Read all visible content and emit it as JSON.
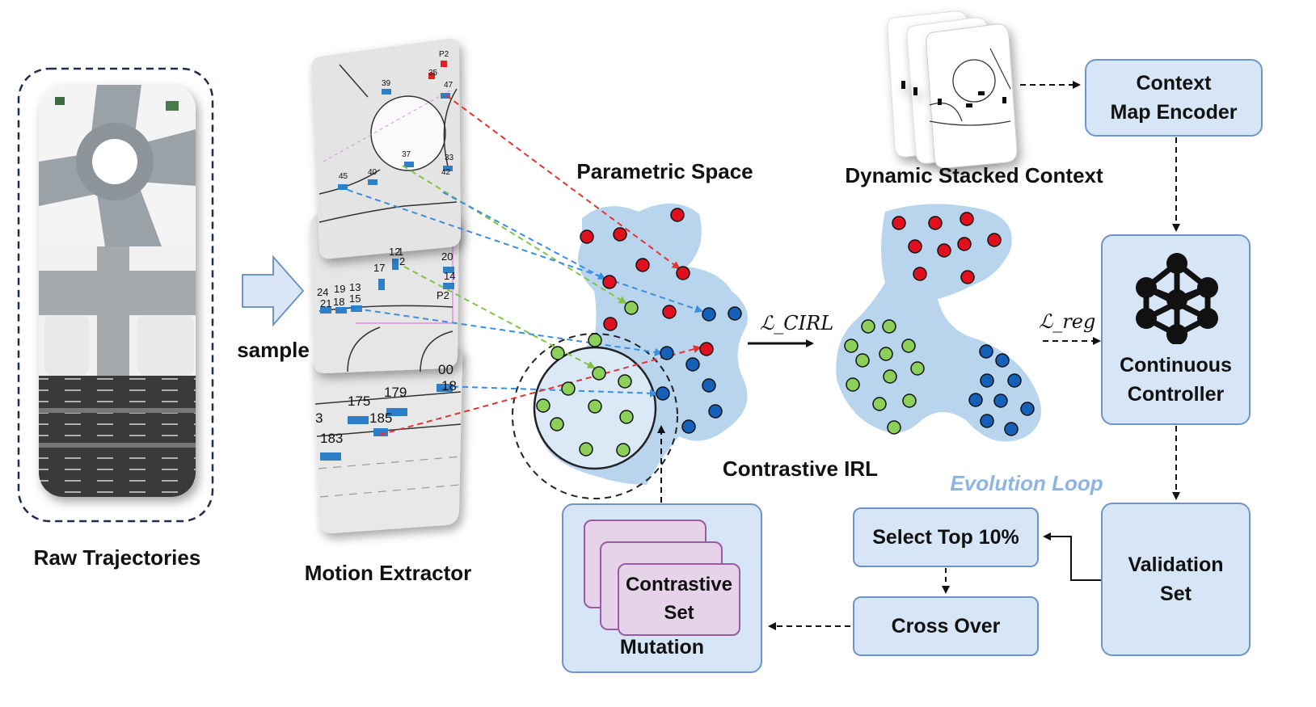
{
  "labels": {
    "raw_trajectories": "Raw Trajectories",
    "sample": "sample",
    "motion_extractor": "Motion Extractor",
    "parametric_space": "Parametric Space",
    "contrastive_irl": "Contrastive IRL",
    "dynamic_stacked_context": "Dynamic Stacked Context",
    "evolution_loop": "Evolution Loop",
    "loss_cirl": "ℒ_CIRL",
    "loss_reg": "ℒ_reg"
  },
  "boxes": {
    "context_map_encoder": "Context\nMap Encoder",
    "continuous_controller": "Continuous\nController",
    "validation_set": "Validation\nSet",
    "select_top": "Select Top 10%",
    "cross_over": "Cross Over",
    "mutation": "Mutation",
    "contrastive_set": "Contrastive\nSet"
  },
  "map_numbers": {
    "top": [
      "P2",
      "35",
      "47",
      "39",
      "37",
      "33",
      "40",
      "42",
      "45"
    ],
    "middle": [
      "12",
      "1",
      "2",
      "17",
      "20",
      "14",
      "24",
      "19",
      "13",
      "21",
      "18",
      "15",
      "P2"
    ],
    "bottom": [
      "175",
      "179",
      "185",
      "183",
      "3",
      "18",
      "00"
    ]
  },
  "colors": {
    "red_dot": "#e0101e",
    "green_dot": "#8cd05a",
    "blue_dot": "#1560b8",
    "cloud": "#b9d5ee",
    "box_fill": "#d6e6f7",
    "box_border": "#6f95c8",
    "evolution_text": "#8eb4e3",
    "arrow_red": "#e63232",
    "arrow_green": "#82c341",
    "arrow_blue": "#3a8ee0"
  }
}
